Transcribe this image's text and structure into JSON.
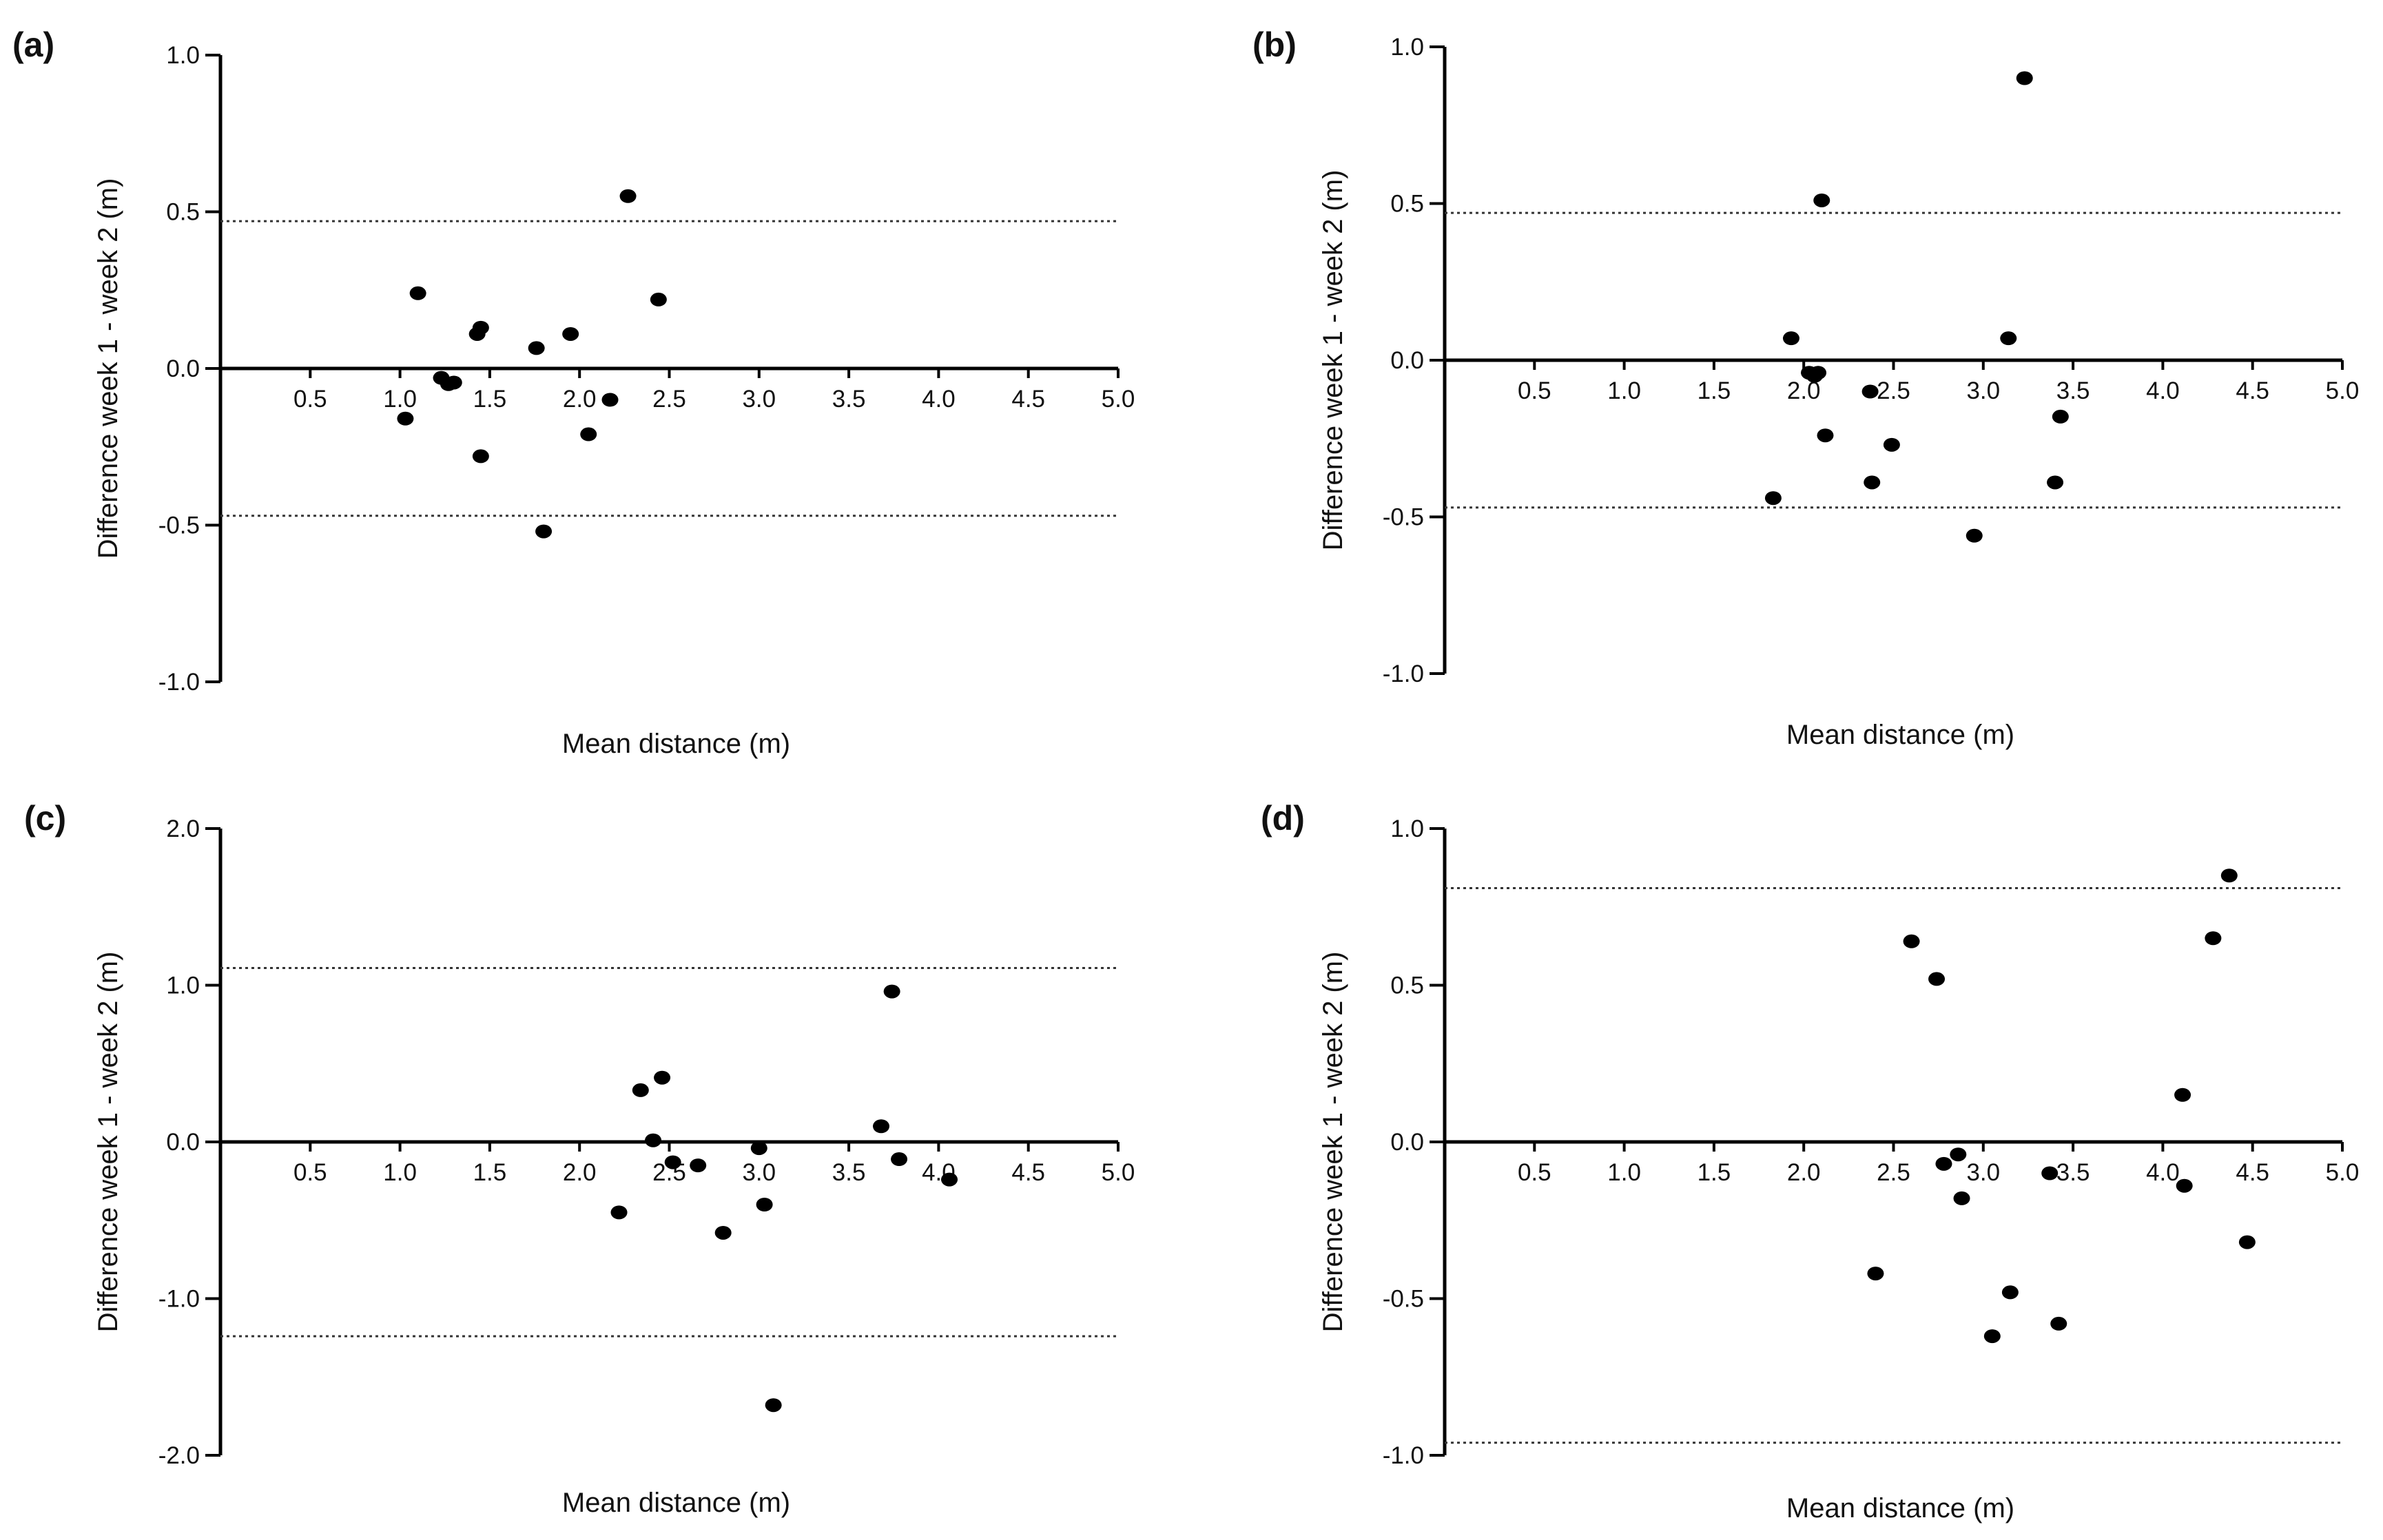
{
  "chart_data": [
    {
      "type": "scatter",
      "panel_label": "(a)",
      "xlabel": "Mean distance (m)",
      "ylabel": "Difference week 1 - week 2  (m)",
      "xlim": [
        0,
        5.0
      ],
      "ylim": [
        -1.0,
        1.0
      ],
      "x_ticks": [
        "0.5",
        "1.0",
        "1.5",
        "2.0",
        "2.5",
        "3.0",
        "3.5",
        "4.0",
        "4.5",
        "5.0"
      ],
      "y_ticks": [
        "1.0",
        "0.5",
        "0.0",
        "-0.5",
        "-1.0"
      ],
      "y_tick_values": [
        1.0,
        0.5,
        0.0,
        -0.5,
        -1.0
      ],
      "limits_of_agreement": [
        0.47,
        -0.47
      ],
      "points": {
        "x": [
          1.03,
          1.1,
          1.23,
          1.27,
          1.3,
          1.43,
          1.45,
          1.45,
          1.76,
          1.8,
          1.95,
          2.05,
          2.17,
          2.27,
          2.44
        ],
        "y": [
          -0.16,
          0.24,
          -0.03,
          -0.05,
          -0.045,
          0.11,
          0.13,
          -0.28,
          0.065,
          -0.52,
          0.11,
          -0.21,
          -0.1,
          0.55,
          0.22
        ]
      }
    },
    {
      "type": "scatter",
      "panel_label": "(b)",
      "xlabel": "Mean distance (m)",
      "ylabel": "Difference week 1 - week 2  (m)",
      "xlim": [
        0,
        5.0
      ],
      "ylim": [
        -1.0,
        1.0
      ],
      "x_ticks": [
        "0.5",
        "1.0",
        "1.5",
        "2.0",
        "2.5",
        "3.0",
        "3.5",
        "4.0",
        "4.5",
        "5.0"
      ],
      "y_ticks": [
        "1.0",
        "0.5",
        "0.0",
        "-0.5",
        "-1.0"
      ],
      "y_tick_values": [
        1.0,
        0.5,
        0.0,
        -0.5,
        -1.0
      ],
      "limits_of_agreement": [
        0.47,
        -0.47
      ],
      "points": {
        "x": [
          1.83,
          1.93,
          2.03,
          2.06,
          2.08,
          2.1,
          2.12,
          2.37,
          2.38,
          2.49,
          2.95,
          3.14,
          3.23,
          3.4,
          3.43
        ],
        "y": [
          -0.44,
          0.07,
          -0.04,
          -0.05,
          -0.04,
          0.51,
          -0.24,
          -0.1,
          -0.39,
          -0.27,
          -0.56,
          0.07,
          0.9,
          -0.39,
          -0.18
        ]
      }
    },
    {
      "type": "scatter",
      "panel_label": "(c)",
      "xlabel": "Mean distance (m)",
      "ylabel": "Difference week 1 - week 2  (m)",
      "xlim": [
        0,
        5.0
      ],
      "ylim": [
        -2.0,
        2.0
      ],
      "x_ticks": [
        "0.5",
        "1.0",
        "1.5",
        "2.0",
        "2.5",
        "3.0",
        "3.5",
        "4.0",
        "4.5",
        "5.0"
      ],
      "y_ticks": [
        "2.0",
        "1.0",
        "0.0",
        "-1.0",
        "-2.0"
      ],
      "y_tick_values": [
        2.0,
        1.0,
        0.0,
        -1.0,
        -2.0
      ],
      "limits_of_agreement": [
        1.11,
        -1.24
      ],
      "points": {
        "x": [
          2.22,
          2.34,
          2.41,
          2.46,
          2.52,
          2.66,
          2.8,
          3.0,
          3.03,
          3.08,
          3.68,
          3.74,
          3.78,
          4.06
        ],
        "y": [
          -0.45,
          0.33,
          0.01,
          0.41,
          -0.13,
          -0.15,
          -0.58,
          -0.04,
          -0.4,
          -1.68,
          0.1,
          0.96,
          -0.11,
          -0.24
        ]
      }
    },
    {
      "type": "scatter",
      "panel_label": "(d)",
      "xlabel": "Mean distance (m)",
      "ylabel": "Difference week 1 - week 2  (m)",
      "xlim": [
        0,
        5.0
      ],
      "ylim": [
        -1.0,
        1.0
      ],
      "x_ticks": [
        "0.5",
        "1.0",
        "1.5",
        "2.0",
        "2.5",
        "3.0",
        "3.5",
        "4.0",
        "4.5",
        "5.0"
      ],
      "y_ticks": [
        "1.0",
        "0.5",
        "0.0",
        "-0.5",
        "-1.0"
      ],
      "y_tick_values": [
        1.0,
        0.5,
        0.0,
        -0.5,
        -1.0
      ],
      "limits_of_agreement": [
        0.81,
        -0.96
      ],
      "points": {
        "x": [
          2.4,
          2.6,
          2.74,
          2.78,
          2.86,
          2.88,
          3.05,
          3.15,
          3.37,
          3.42,
          4.11,
          4.12,
          4.28,
          4.37,
          4.47
        ],
        "y": [
          -0.42,
          0.64,
          0.52,
          -0.07,
          -0.04,
          -0.18,
          -0.62,
          -0.48,
          -0.1,
          -0.58,
          0.15,
          -0.14,
          0.65,
          0.85,
          -0.32
        ]
      }
    }
  ]
}
